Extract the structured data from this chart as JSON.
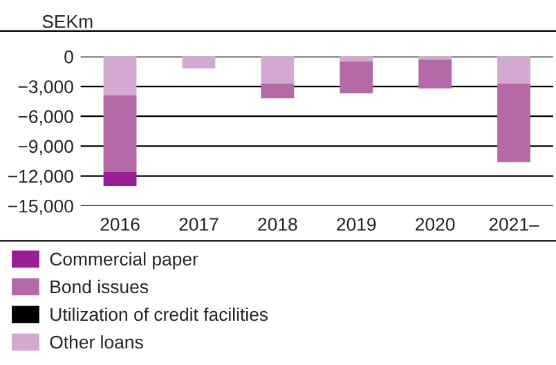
{
  "chart_data": {
    "type": "bar",
    "stacked": true,
    "ylabel": "SEKm",
    "categories": [
      "2016",
      "2017",
      "2018",
      "2019",
      "2020",
      "2021–"
    ],
    "series": [
      {
        "name": "Other loans",
        "color": "#d4a9cf",
        "values": [
          -3900,
          -1200,
          -2700,
          -500,
          -300,
          -2700
        ]
      },
      {
        "name": "Utilization of credit facilities",
        "color": "#000000",
        "values": [
          0,
          0,
          0,
          0,
          0,
          0
        ]
      },
      {
        "name": "Bond issues",
        "color": "#b36aa6",
        "values": [
          -7700,
          0,
          -1500,
          -3200,
          -2900,
          -7900
        ]
      },
      {
        "name": "Commercial paper",
        "color": "#9c1c93",
        "values": [
          -1400,
          0,
          0,
          0,
          0,
          0
        ]
      }
    ],
    "ylim": [
      -15000,
      0
    ],
    "yticks": [
      {
        "value": -15000,
        "label": "−15,000"
      },
      {
        "value": -12000,
        "label": "−12,000"
      },
      {
        "value": -9000,
        "label": "−9,000"
      },
      {
        "value": -6000,
        "label": "−6,000"
      },
      {
        "value": -3000,
        "label": "−3,000"
      },
      0
    ],
    "grid": "y",
    "legend": "bottom"
  }
}
